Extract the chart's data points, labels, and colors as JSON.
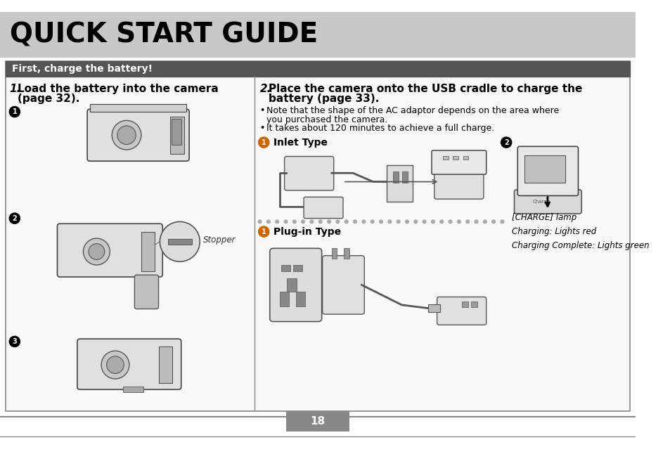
{
  "bg_color": "#ffffff",
  "header_bg": "#c8c8c8",
  "header_text": "QUICK START GUIDE",
  "header_text_color": "#000000",
  "section_bar_color": "#555555",
  "section_text": "First, charge the battery!",
  "section_text_color": "#ffffff",
  "page_number": "18",
  "page_number_bg": "#888888",
  "page_number_color": "#ffffff",
  "bullet1": "  Note that the shape of the AC adaptor depends on the area where\n  you purchased the camera.",
  "bullet2": "  It takes about 120 minutes to achieve a full charge.",
  "inlet_type_label": "Inlet Type",
  "plug_in_label": "Plug-in Type",
  "charge_lamp_text": "[CHARGE] lamp\nCharging: Lights red\nCharging Complete: Lights green",
  "stopper_label": "Stopper",
  "divider_color": "#888888",
  "content_border": "#888888",
  "dot_color": "#aaaaaa",
  "orange_circle": "#cc6600",
  "white": "#ffffff",
  "black": "#000000",
  "light_gray": "#e8e8e8",
  "mid_gray": "#cccccc",
  "dark_gray": "#888888"
}
